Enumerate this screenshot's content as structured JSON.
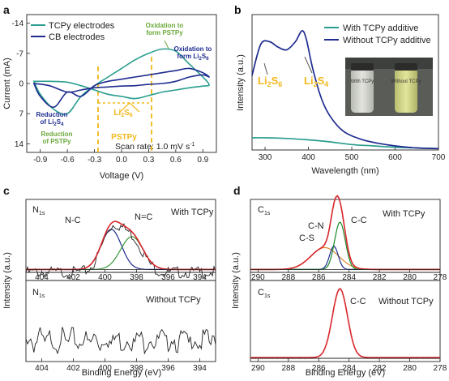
{
  "panels": {
    "a": {
      "letter": "a",
      "legend": [
        "TCPy electrodes",
        "CB electrodes"
      ],
      "xlabel": "Voltage (V)",
      "ylabel": "Current (mA)",
      "xticks": [
        "-0.9",
        "-0.6",
        "-0.3",
        "0.0",
        "0.3",
        "0.6",
        "0.9"
      ],
      "yticks": [
        "-14",
        "-7",
        "0",
        "7",
        "14"
      ],
      "annotations": {
        "ox_pstpy": "Oxidation to form PSTPy",
        "ox_li2s6": "Oxidation to form Li2S6",
        "red_li2s4": "Reduction of Li2S4",
        "red_pstpy": "Reduction of PSTPy",
        "li2s6": "Li2S6",
        "pstpy": "PSTPy",
        "scan_rate": "Scan rate: 1.0 mV s-1"
      },
      "colors": {
        "tcpy": "#2a9d8f",
        "cb": "#1f2c8f",
        "accent": "#f2b81c",
        "green_text": "#6aa83a"
      }
    },
    "b": {
      "letter": "b",
      "legend": [
        "With TCPy additive",
        "Without TCPy additive"
      ],
      "xlabel": "Wavelength (nm)",
      "ylabel": "Intensity (a.u.)",
      "xticks": [
        "300",
        "400",
        "500",
        "600",
        "700"
      ],
      "peak_labels": [
        "Li2S6",
        "Li2S4"
      ],
      "vial_labels": [
        "With TCPy",
        "Without TCPy"
      ]
    },
    "c": {
      "letter": "c",
      "element": "N1s",
      "top_label": "With TCPy",
      "bottom_label": "Without TCPy",
      "peaks": [
        "N-C",
        "N=C"
      ],
      "xlabel": "Binding Energy (eV)",
      "ylabel": "Intensity (a.u.)",
      "xticks": [
        "404",
        "402",
        "400",
        "398",
        "396",
        "394"
      ]
    },
    "d": {
      "letter": "d",
      "element": "C1s",
      "top_label": "With TCPy",
      "bottom_label": "Without TCPy",
      "peaks": [
        "C-N",
        "C-C",
        "C-S",
        "C-C"
      ],
      "xlabel": "Binding Energy (eV)",
      "ylabel": "Intensity (a.u.)",
      "xticks": [
        "290",
        "288",
        "286",
        "284",
        "282",
        "280",
        "278"
      ]
    }
  },
  "chart_data": [
    {
      "type": "line",
      "title": "",
      "xlabel": "Voltage (V)",
      "ylabel": "Current (mA)",
      "xlim": [
        -1.05,
        1.05
      ],
      "ylim": [
        -16,
        16
      ],
      "y_inverted": true,
      "series": [
        {
          "name": "TCPy electrodes",
          "x": [
            -0.97,
            -0.8,
            -0.6,
            -0.45,
            -0.3,
            -0.15,
            0.0,
            0.15,
            0.3,
            0.45,
            0.6,
            0.75,
            0.9,
            0.97,
            0.9,
            0.75,
            0.6,
            0.45,
            0.3,
            0.15,
            0.0,
            -0.15,
            -0.3,
            -0.45,
            -0.6,
            -0.75,
            -0.9,
            -0.97
          ],
          "y": [
            -0.5,
            -0.5,
            -0.3,
            0.5,
            1.5,
            2.5,
            3.0,
            3.5,
            2.8,
            2.0,
            1.5,
            1.0,
            0.6,
            0.3,
            -1.5,
            -4.5,
            -7.5,
            -8.0,
            -7.0,
            -5.5,
            -3.5,
            -1.5,
            0.5,
            3.0,
            7.0,
            6.0,
            2.5,
            -0.5
          ]
        },
        {
          "name": "CB electrodes",
          "x": [
            -0.97,
            -0.8,
            -0.6,
            -0.45,
            -0.3,
            -0.15,
            0.0,
            0.15,
            0.3,
            0.45,
            0.6,
            0.75,
            0.9,
            0.97,
            0.9,
            0.75,
            0.6,
            0.45,
            0.3,
            0.15,
            0.0,
            -0.15,
            -0.3,
            -0.45,
            -0.6,
            -0.75,
            -0.9,
            -0.97
          ],
          "y": [
            0.0,
            0.5,
            2.0,
            1.5,
            1.0,
            0.8,
            0.6,
            0.5,
            0.2,
            0.0,
            -0.5,
            -1.5,
            -2.0,
            -1.5,
            -2.5,
            -3.5,
            -3.0,
            -2.5,
            -2.0,
            -1.5,
            -1.0,
            -0.5,
            0.5,
            3.0,
            2.0,
            5.5,
            3.0,
            0.0
          ]
        }
      ]
    },
    {
      "type": "line",
      "title": "",
      "xlabel": "Wavelength (nm)",
      "ylabel": "Intensity (a.u.)",
      "xlim": [
        270,
        700
      ],
      "series": [
        {
          "name": "With TCPy additive",
          "x": [
            270,
            300,
            350,
            400,
            450,
            500,
            550,
            600,
            650,
            700
          ],
          "y": [
            0.09,
            0.09,
            0.085,
            0.075,
            0.06,
            0.04,
            0.03,
            0.02,
            0.015,
            0.01
          ]
        },
        {
          "name": "Without TCPy additive",
          "x": [
            270,
            290,
            310,
            330,
            350,
            370,
            385,
            395,
            410,
            430,
            450,
            480,
            520,
            560,
            600,
            650,
            700
          ],
          "y": [
            0.55,
            0.78,
            0.8,
            0.76,
            0.74,
            0.8,
            0.88,
            0.82,
            0.6,
            0.38,
            0.25,
            0.14,
            0.08,
            0.05,
            0.03,
            0.015,
            0.01
          ]
        }
      ]
    },
    {
      "type": "line",
      "title": "",
      "xlabel": "Binding Energy (eV)",
      "ylabel": "Intensity (a.u.)",
      "xlim": [
        405,
        393
      ],
      "panels": [
        {
          "label": "With TCPy",
          "x": [
            405,
            404,
            403,
            402,
            401,
            400.5,
            400,
            399.5,
            399,
            398.5,
            398,
            397.5,
            397,
            396,
            395,
            394,
            393
          ],
          "y": [
            0.05,
            0.05,
            0.06,
            0.08,
            0.2,
            0.45,
            0.72,
            0.8,
            0.78,
            0.7,
            0.55,
            0.35,
            0.2,
            0.08,
            0.05,
            0.04,
            0.04
          ],
          "components": [
            {
              "name": "N-C",
              "center": 399.6
            },
            {
              "name": "N=C",
              "center": 398.4
            }
          ]
        },
        {
          "label": "Without TCPy",
          "x": [
            405,
            403,
            401,
            399,
            397,
            395,
            393
          ],
          "y": [
            0.3,
            0.32,
            0.35,
            0.33,
            0.34,
            0.32,
            0.31
          ]
        }
      ]
    },
    {
      "type": "line",
      "title": "",
      "xlabel": "Binding Energy (eV)",
      "ylabel": "Intensity (a.u.)",
      "xlim": [
        290.5,
        278
      ],
      "panels": [
        {
          "label": "With TCPy",
          "x": [
            290.5,
            289,
            288,
            287,
            286,
            285.5,
            285,
            284.7,
            284.5,
            284.2,
            284,
            283.5,
            283,
            282,
            281,
            280,
            279,
            278
          ],
          "y": [
            0.02,
            0.03,
            0.05,
            0.1,
            0.22,
            0.35,
            0.55,
            0.7,
            0.78,
            0.72,
            0.55,
            0.22,
            0.08,
            0.03,
            0.02,
            0.02,
            0.02,
            0.02
          ],
          "components": [
            {
              "name": "C-N",
              "center": 285.6
            },
            {
              "name": "C-S",
              "center": 285.0
            },
            {
              "name": "C-C",
              "center": 284.6
            }
          ]
        },
        {
          "label": "Without TCPy",
          "x": [
            290.5,
            289,
            288,
            287,
            286,
            285.5,
            285,
            284.8,
            284.5,
            284.2,
            284,
            283.5,
            283,
            282,
            280,
            278
          ],
          "y": [
            0.02,
            0.03,
            0.05,
            0.1,
            0.2,
            0.32,
            0.55,
            0.72,
            0.85,
            0.7,
            0.5,
            0.2,
            0.08,
            0.03,
            0.02,
            0.02
          ],
          "components": [
            {
              "name": "C-C",
              "center": 284.6
            }
          ]
        }
      ]
    }
  ]
}
